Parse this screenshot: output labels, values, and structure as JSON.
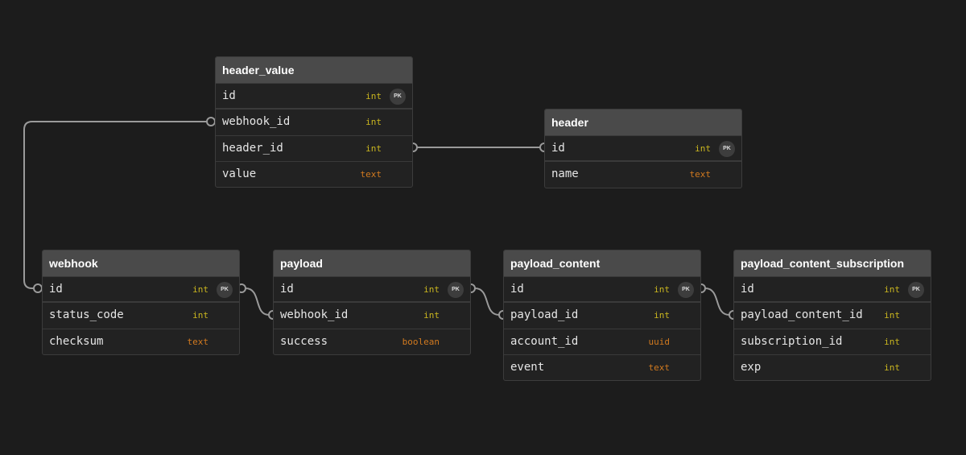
{
  "colors": {
    "int": "#c9b51f",
    "text": "#d27a1f",
    "uuid": "#d27a1f",
    "boolean": "#d27a1f",
    "connector": "#9a9a9a"
  },
  "pk_label": "PK",
  "tables": [
    {
      "name": "header_value",
      "columns": [
        {
          "name": "id",
          "type": "int",
          "pk": true
        },
        {
          "name": "webhook_id",
          "type": "int"
        },
        {
          "name": "header_id",
          "type": "int"
        },
        {
          "name": "value",
          "type": "text"
        }
      ]
    },
    {
      "name": "header",
      "columns": [
        {
          "name": "id",
          "type": "int",
          "pk": true
        },
        {
          "name": "name",
          "type": "text"
        }
      ]
    },
    {
      "name": "webhook",
      "columns": [
        {
          "name": "id",
          "type": "int",
          "pk": true
        },
        {
          "name": "status_code",
          "type": "int"
        },
        {
          "name": "checksum",
          "type": "text"
        }
      ]
    },
    {
      "name": "payload",
      "columns": [
        {
          "name": "id",
          "type": "int",
          "pk": true
        },
        {
          "name": "webhook_id",
          "type": "int"
        },
        {
          "name": "success",
          "type": "boolean"
        }
      ]
    },
    {
      "name": "payload_content",
      "columns": [
        {
          "name": "id",
          "type": "int",
          "pk": true
        },
        {
          "name": "payload_id",
          "type": "int"
        },
        {
          "name": "account_id",
          "type": "uuid"
        },
        {
          "name": "event",
          "type": "text"
        }
      ]
    },
    {
      "name": "payload_content_subscription",
      "columns": [
        {
          "name": "id",
          "type": "int",
          "pk": true
        },
        {
          "name": "payload_content_id",
          "type": "int"
        },
        {
          "name": "subscription_id",
          "type": "int"
        },
        {
          "name": "exp",
          "type": "int"
        }
      ]
    }
  ],
  "relations": [
    {
      "from": "header_value.webhook_id",
      "to": "webhook.id"
    },
    {
      "from": "header_value.header_id",
      "to": "header.id"
    },
    {
      "from": "webhook.id",
      "to": "payload.webhook_id"
    },
    {
      "from": "payload.id",
      "to": "payload_content.payload_id"
    },
    {
      "from": "payload_content.id",
      "to": "payload_content_subscription.payload_content_id"
    }
  ]
}
